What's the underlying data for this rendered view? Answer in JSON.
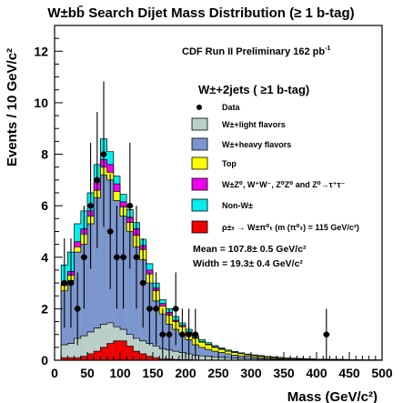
{
  "chart_data": {
    "type": "bar",
    "title": "W±bb̄ Search Dijet Mass Distribution (≥ 1 b-tag)",
    "xlabel": "Mass (GeV/c²)",
    "ylabel": "Events / 10 GeV/c²",
    "xlim": [
      0,
      500
    ],
    "ylim": [
      0,
      13
    ],
    "x_ticks": [
      "0",
      "50",
      "100",
      "150",
      "200",
      "250",
      "300",
      "350",
      "400",
      "450",
      "500"
    ],
    "y_ticks": [
      "0",
      "2",
      "4",
      "6",
      "8",
      "10",
      "12"
    ],
    "bin_edges": [
      10,
      20,
      30,
      40,
      50,
      60,
      70,
      80,
      90,
      100,
      110,
      120,
      130,
      140,
      150,
      160,
      170,
      180,
      190,
      200,
      210,
      220,
      230,
      240,
      250,
      260,
      270,
      280,
      290,
      300,
      310,
      320,
      330,
      340,
      350,
      360,
      370,
      380,
      390,
      400,
      410,
      420,
      430,
      440,
      450,
      460,
      470,
      480,
      490,
      500
    ],
    "stack_order": [
      "Signal",
      "Non-W±",
      "W±Z⁰, W⁺W⁻, Z⁰Z⁰ and Z⁰→τ⁺τ⁻",
      "Top",
      "W±+heavy flavors",
      "W±+light flavors"
    ],
    "cumulative_tops": {
      "signal": [
        0.1,
        0.1,
        0.1,
        0.15,
        0.25,
        0.35,
        0.5,
        0.65,
        0.75,
        0.75,
        0.55,
        0.35,
        0.25,
        0.15,
        0.1,
        0.05,
        0.05,
        0.03,
        0.02,
        0.02,
        0.01,
        0,
        0,
        0,
        0,
        0,
        0,
        0,
        0,
        0,
        0,
        0,
        0,
        0,
        0,
        0,
        0,
        0,
        0,
        0,
        0,
        0,
        0,
        0,
        0,
        0,
        0,
        0,
        0
      ],
      "light": [
        0.6,
        0.65,
        0.85,
        0.95,
        1.1,
        1.25,
        1.4,
        1.45,
        1.3,
        1.2,
        1.0,
        0.85,
        0.75,
        0.65,
        0.55,
        0.45,
        0.4,
        0.35,
        0.3,
        0.25,
        0.2,
        0.17,
        0.15,
        0.13,
        0.11,
        0.1,
        0.08,
        0.07,
        0.06,
        0.05,
        0.04,
        0.04,
        0.03,
        0.03,
        0.02,
        0.02,
        0.02,
        0.01,
        0.01,
        0.01,
        0.01,
        0.01,
        0.01,
        0.01,
        0,
        0,
        0,
        0,
        0
      ],
      "heavy": [
        2.7,
        3.1,
        4.2,
        4.5,
        5.3,
        6.3,
        7.2,
        7.0,
        6.2,
        5.6,
        5.0,
        4.4,
        3.9,
        3.0,
        2.3,
        1.8,
        1.4,
        1.2,
        1.0,
        0.8,
        0.6,
        0.5,
        0.42,
        0.35,
        0.3,
        0.25,
        0.2,
        0.17,
        0.15,
        0.12,
        0.1,
        0.08,
        0.07,
        0.06,
        0.05,
        0.05,
        0.04,
        0.04,
        0.03,
        0.03,
        0.03,
        0.02,
        0.02,
        0.02,
        0.01,
        0.01,
        0.01,
        0.01,
        0
      ],
      "top": [
        2.9,
        3.3,
        4.4,
        4.9,
        5.6,
        6.6,
        7.5,
        7.3,
        6.55,
        5.95,
        5.35,
        4.85,
        4.3,
        3.35,
        2.7,
        2.1,
        1.75,
        1.5,
        1.3,
        1.05,
        0.85,
        0.7,
        0.6,
        0.5,
        0.42,
        0.35,
        0.3,
        0.25,
        0.21,
        0.18,
        0.15,
        0.13,
        0.11,
        0.09,
        0.08,
        0.07,
        0.06,
        0.05,
        0.04,
        0.04,
        0.03,
        0.03,
        0.03,
        0.02,
        0.02,
        0.01,
        0.01,
        0.01,
        0.01
      ],
      "diboson": [
        3.0,
        3.45,
        4.6,
        5.1,
        5.8,
        6.9,
        7.8,
        7.6,
        6.85,
        6.15,
        5.55,
        5.1,
        4.45,
        3.5,
        2.8,
        2.2,
        1.85,
        1.55,
        1.35,
        1.1,
        0.88,
        0.72,
        0.62,
        0.52,
        0.44,
        0.36,
        0.31,
        0.26,
        0.22,
        0.19,
        0.16,
        0.14,
        0.12,
        0.1,
        0.08,
        0.07,
        0.06,
        0.05,
        0.05,
        0.04,
        0.03,
        0.03,
        0.03,
        0.02,
        0.02,
        0.01,
        0.01,
        0.01,
        0.01
      ],
      "nonw": [
        3.7,
        4.2,
        5.3,
        5.8,
        6.5,
        7.6,
        8.6,
        8.1,
        7.15,
        6.45,
        5.85,
        5.35,
        4.7,
        3.75,
        3.0,
        2.35,
        2.0,
        1.7,
        1.45,
        1.2,
        0.95,
        0.8,
        0.68,
        0.57,
        0.48,
        0.4,
        0.34,
        0.29,
        0.24,
        0.21,
        0.18,
        0.15,
        0.13,
        0.11,
        0.09,
        0.08,
        0.07,
        0.06,
        0.05,
        0.04,
        0.04,
        0.03,
        0.03,
        0.03,
        0.02,
        0.02,
        0.01,
        0.01,
        0.01
      ]
    },
    "data_points": {
      "x": [
        15,
        25,
        35,
        45,
        55,
        65,
        75,
        85,
        95,
        105,
        115,
        125,
        135,
        145,
        155,
        165,
        175,
        185,
        195,
        205,
        215,
        415
      ],
      "y": [
        3,
        3,
        2,
        4,
        6,
        7,
        8,
        5,
        4,
        4,
        6,
        4,
        3,
        2,
        2,
        1,
        1,
        2,
        1,
        1,
        1,
        1
      ]
    },
    "legend": {
      "header": "W±+2jets ( ≥1 b-tag)",
      "placement": "top-right",
      "items": [
        {
          "label": "Data",
          "marker": "dot",
          "color": "#000000"
        },
        {
          "label": "W±+light flavors",
          "marker": "box",
          "color": "#b9cfc8"
        },
        {
          "label": "W±+heavy flavors",
          "marker": "box",
          "color": "#7b96cf"
        },
        {
          "label": "Top",
          "marker": "box",
          "color": "#ffff00"
        },
        {
          "label": "W±Z⁰, W⁺W⁻, Z⁰Z⁰ and Z⁰→τ⁺τ⁻",
          "marker": "box",
          "color": "#ee00ee"
        },
        {
          "label": "Non-W±",
          "marker": "box",
          "color": "#00eeee"
        },
        {
          "label": "ρ±ₜ → W±π⁰ₜ (m (π⁰ₜ) = 115 GeV/c²)",
          "marker": "box",
          "color": "#ee0000"
        }
      ]
    },
    "annotations": {
      "experiment": "CDF Run II Preliminary  162 pb",
      "experiment_sup": "-1",
      "mean": "Mean  = 107.8± 0.5 GeV/c²",
      "width": "Width =  19.3± 0.4 GeV/c²"
    },
    "colors": {
      "signal": "#ee0000",
      "light": "#b9cfc8",
      "heavy": "#7b96cf",
      "top": "#ffff00",
      "diboson": "#ee00ee",
      "nonw": "#00eeee"
    },
    "grid": false
  }
}
